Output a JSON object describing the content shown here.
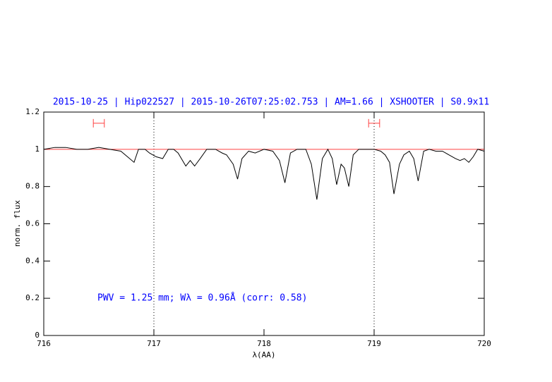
{
  "chart_data": {
    "type": "line",
    "title": "2015-10-25 | Hip022527 | 2015-10-26T07:25:02.753 | AM=1.66 | XSHOOTER | S0.9x11",
    "x_label": "λ(AA)",
    "y_label": "norm. flux",
    "annotation": "PWV = 1.25 mm; Wλ = 0.96Å (corr: 0.58)",
    "xlim": [
      716,
      720
    ],
    "ylim": [
      0,
      1.2
    ],
    "xticks": [
      716,
      717,
      718,
      719,
      720
    ],
    "yticks": [
      0,
      0.2,
      0.4,
      0.6,
      0.8,
      1,
      1.2
    ],
    "reference_line": 1,
    "reference_color": "#ff4040",
    "vlines": [
      717,
      719
    ],
    "ranges": [
      {
        "x": [
          716.45,
          716.55
        ],
        "y": 1.14
      },
      {
        "x": [
          718.95,
          719.05
        ],
        "y": 1.14
      }
    ],
    "range_color": "#ff4040",
    "series": [
      {
        "color": "#000000",
        "x": [
          716.0,
          716.1,
          716.2,
          716.3,
          716.4,
          716.5,
          716.6,
          716.7,
          716.76,
          716.82,
          716.86,
          716.92,
          716.96,
          717.02,
          717.08,
          717.13,
          717.18,
          717.22,
          717.29,
          717.33,
          717.37,
          717.42,
          717.48,
          717.56,
          717.62,
          717.66,
          717.72,
          717.76,
          717.8,
          717.86,
          717.92,
          718.0,
          718.08,
          718.14,
          718.19,
          718.24,
          718.3,
          718.38,
          718.43,
          718.48,
          718.53,
          718.58,
          718.62,
          718.66,
          718.7,
          718.73,
          718.77,
          718.81,
          718.86,
          718.94,
          719.0,
          719.06,
          719.1,
          719.14,
          719.18,
          719.23,
          719.27,
          719.32,
          719.36,
          719.4,
          719.45,
          719.5,
          719.56,
          719.62,
          719.68,
          719.74,
          719.78,
          719.82,
          719.86,
          719.9,
          719.94,
          720.0
        ],
        "values": [
          1.0,
          1.01,
          1.01,
          1.0,
          1.0,
          1.01,
          1.0,
          0.99,
          0.96,
          0.93,
          1.0,
          1.0,
          0.98,
          0.96,
          0.95,
          1.0,
          1.0,
          0.98,
          0.91,
          0.94,
          0.91,
          0.95,
          1.0,
          1.0,
          0.98,
          0.97,
          0.92,
          0.84,
          0.95,
          0.99,
          0.98,
          1.0,
          0.99,
          0.94,
          0.82,
          0.98,
          1.0,
          1.0,
          0.92,
          0.73,
          0.95,
          1.0,
          0.95,
          0.81,
          0.92,
          0.9,
          0.8,
          0.97,
          1.0,
          1.0,
          1.0,
          0.99,
          0.97,
          0.93,
          0.76,
          0.92,
          0.97,
          0.99,
          0.95,
          0.83,
          0.99,
          1.0,
          0.99,
          0.99,
          0.97,
          0.95,
          0.94,
          0.95,
          0.93,
          0.96,
          1.0,
          0.99
        ]
      }
    ]
  }
}
